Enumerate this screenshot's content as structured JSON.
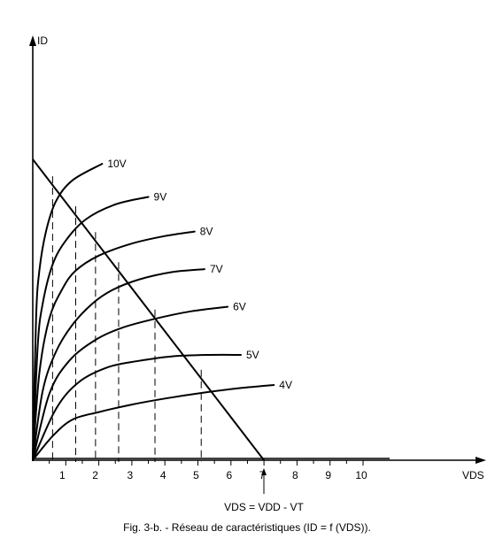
{
  "chart_data": {
    "type": "line",
    "xlabel": "VDS",
    "ylabel": "ID",
    "xticks": [
      "1",
      "2",
      "3",
      "4",
      "5",
      "6",
      "7",
      "8",
      "9",
      "10"
    ],
    "xlim": [
      0,
      10.8
    ],
    "ylim": [
      0,
      1
    ],
    "series": [
      {
        "name": "10V",
        "points": [
          [
            0,
            0
          ],
          [
            0.1,
            0.47
          ],
          [
            0.2,
            0.63
          ],
          [
            0.4,
            0.76
          ],
          [
            0.7,
            0.86
          ],
          [
            1.2,
            0.93
          ],
          [
            2.1,
            0.985
          ]
        ]
      },
      {
        "name": "9V",
        "points": [
          [
            0,
            0
          ],
          [
            0.15,
            0.38
          ],
          [
            0.3,
            0.52
          ],
          [
            0.6,
            0.65
          ],
          [
            1.0,
            0.73
          ],
          [
            1.6,
            0.8
          ],
          [
            2.5,
            0.85
          ],
          [
            3.5,
            0.875
          ]
        ]
      },
      {
        "name": "8V",
        "points": [
          [
            0,
            0
          ],
          [
            0.2,
            0.29
          ],
          [
            0.5,
            0.47
          ],
          [
            0.9,
            0.57
          ],
          [
            1.3,
            0.63
          ],
          [
            2.0,
            0.68
          ],
          [
            3.0,
            0.72
          ],
          [
            4.0,
            0.745
          ],
          [
            4.9,
            0.76
          ]
        ]
      },
      {
        "name": "7V",
        "points": [
          [
            0,
            0
          ],
          [
            0.3,
            0.23
          ],
          [
            0.7,
            0.36
          ],
          [
            1.2,
            0.45
          ],
          [
            1.8,
            0.52
          ],
          [
            2.4,
            0.565
          ],
          [
            3.2,
            0.6
          ],
          [
            4.2,
            0.625
          ],
          [
            5.2,
            0.635
          ]
        ]
      },
      {
        "name": "6V",
        "points": [
          [
            0,
            0
          ],
          [
            0.5,
            0.22
          ],
          [
            1.1,
            0.33
          ],
          [
            1.9,
            0.4
          ],
          [
            2.7,
            0.44
          ],
          [
            3.7,
            0.47
          ],
          [
            4.8,
            0.495
          ],
          [
            5.9,
            0.51
          ]
        ]
      },
      {
        "name": "5V",
        "points": [
          [
            0,
            0
          ],
          [
            0.7,
            0.17
          ],
          [
            1.4,
            0.26
          ],
          [
            2.3,
            0.31
          ],
          [
            3.2,
            0.33
          ],
          [
            4.2,
            0.345
          ],
          [
            5.3,
            0.35
          ],
          [
            6.3,
            0.35
          ]
        ]
      },
      {
        "name": "4V",
        "points": [
          [
            0,
            0
          ],
          [
            0.6,
            0.08
          ],
          [
            1.2,
            0.135
          ],
          [
            2.0,
            0.16
          ],
          [
            3.0,
            0.185
          ],
          [
            4.0,
            0.205
          ],
          [
            5.2,
            0.225
          ],
          [
            6.3,
            0.24
          ],
          [
            7.3,
            0.25
          ]
        ]
      }
    ],
    "load_line": {
      "points": [
        [
          0,
          1.0
        ],
        [
          7.0,
          0.0
        ]
      ]
    },
    "projections_x": [
      0.6,
      1.3,
      1.9,
      2.6,
      3.7,
      5.1
    ],
    "annotation": {
      "text": "VDS = VDD - VT",
      "x": 7.0
    },
    "caption": "Fig. 3-b. - Réseau de caractéristiques (ID = f (VDS))."
  }
}
